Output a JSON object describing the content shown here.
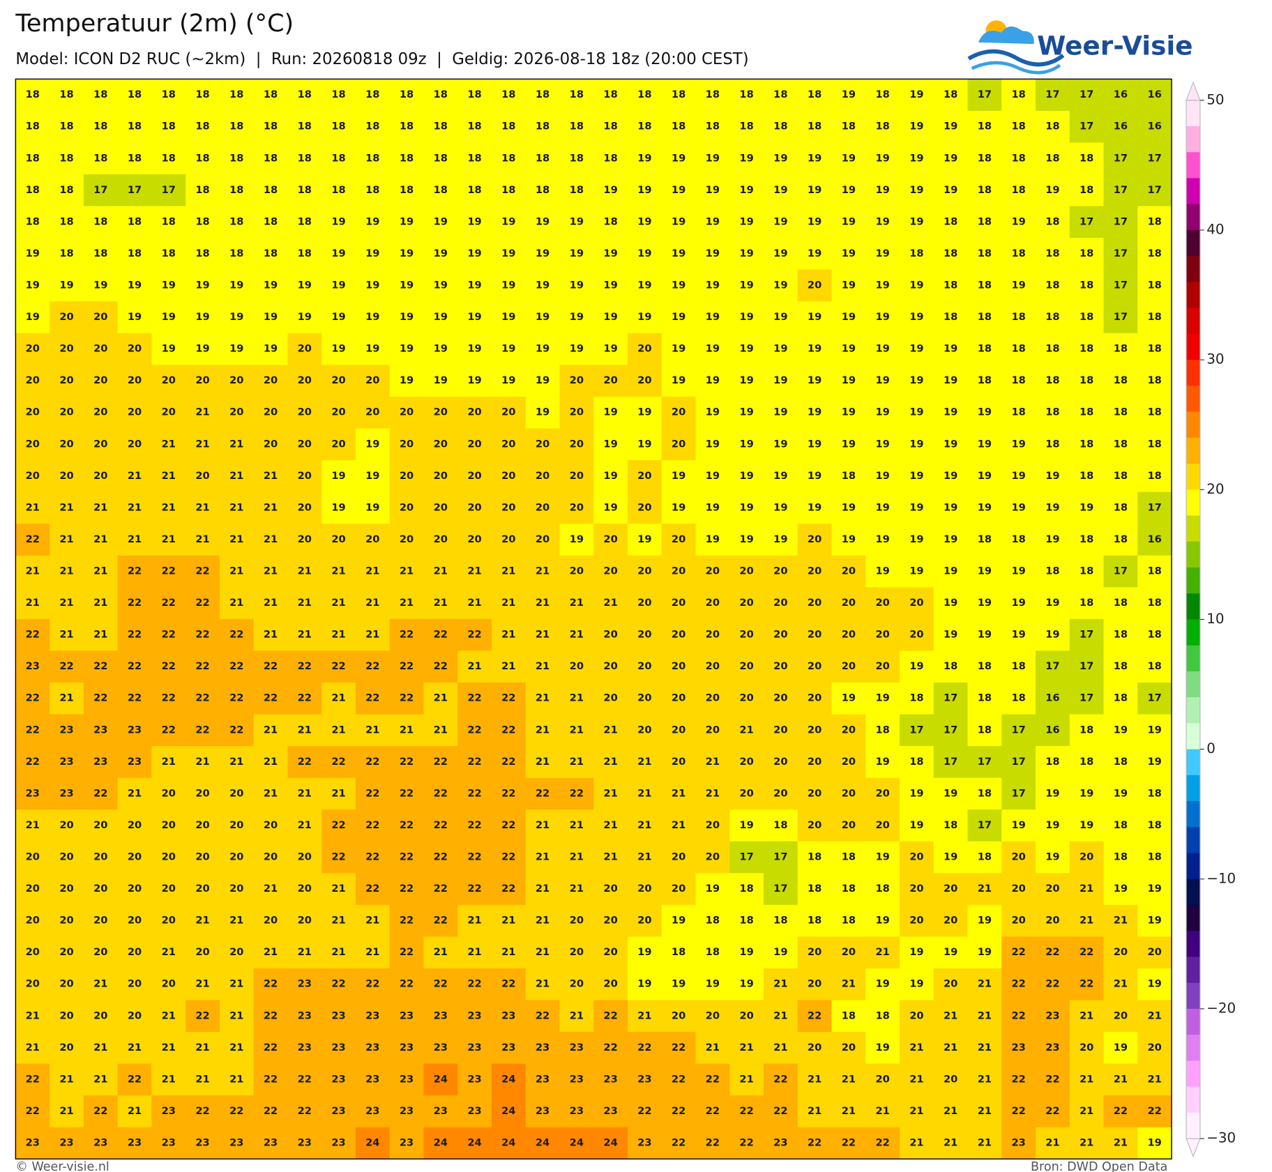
{
  "header": {
    "title": "Temperatuur (2m) (°C)",
    "subtitle": "Model: ICON D2 RUC (~2km)  |  Run: 20260818 09z  |  Geldig: 2026-08-18 18z (20:00 CEST)",
    "logo": "Weer-Visie"
  },
  "map": {
    "grid": [
      [
        18,
        18,
        18,
        18,
        18,
        18,
        18,
        18,
        18,
        18,
        18,
        18,
        18,
        18,
        18,
        18,
        18,
        18,
        18,
        18,
        18,
        18,
        18,
        18,
        19,
        18,
        19,
        18,
        17,
        18,
        17,
        17,
        16,
        16
      ],
      [
        18,
        18,
        18,
        18,
        18,
        18,
        18,
        18,
        18,
        18,
        18,
        18,
        18,
        18,
        18,
        18,
        18,
        18,
        18,
        18,
        18,
        18,
        18,
        18,
        18,
        18,
        19,
        19,
        18,
        18,
        18,
        17,
        16,
        16
      ],
      [
        18,
        18,
        18,
        18,
        18,
        18,
        18,
        18,
        18,
        18,
        18,
        18,
        18,
        18,
        18,
        18,
        18,
        18,
        19,
        19,
        19,
        19,
        19,
        19,
        19,
        19,
        19,
        19,
        18,
        18,
        18,
        18,
        17,
        17
      ],
      [
        18,
        18,
        17,
        17,
        17,
        18,
        18,
        18,
        18,
        18,
        18,
        18,
        18,
        18,
        18,
        18,
        18,
        19,
        19,
        19,
        19,
        19,
        19,
        19,
        19,
        19,
        19,
        19,
        18,
        18,
        19,
        18,
        17,
        17
      ],
      [
        18,
        18,
        18,
        18,
        18,
        18,
        18,
        18,
        18,
        19,
        19,
        19,
        19,
        19,
        19,
        19,
        19,
        18,
        19,
        19,
        19,
        19,
        19,
        19,
        19,
        19,
        19,
        18,
        18,
        19,
        18,
        17,
        17,
        18
      ],
      [
        19,
        18,
        18,
        18,
        18,
        18,
        18,
        18,
        18,
        19,
        19,
        19,
        19,
        19,
        19,
        19,
        19,
        19,
        19,
        19,
        19,
        19,
        19,
        19,
        19,
        19,
        18,
        18,
        18,
        18,
        18,
        18,
        17,
        18
      ],
      [
        19,
        19,
        19,
        19,
        19,
        19,
        19,
        19,
        19,
        19,
        19,
        19,
        19,
        19,
        19,
        19,
        19,
        19,
        19,
        19,
        19,
        19,
        19,
        20,
        19,
        19,
        19,
        18,
        18,
        19,
        18,
        18,
        17,
        18
      ],
      [
        19,
        20,
        20,
        19,
        19,
        19,
        19,
        19,
        19,
        19,
        19,
        19,
        19,
        19,
        19,
        19,
        19,
        19,
        19,
        19,
        19,
        19,
        19,
        19,
        19,
        19,
        19,
        18,
        18,
        18,
        18,
        18,
        17,
        18
      ],
      [
        20,
        20,
        20,
        20,
        19,
        19,
        19,
        19,
        20,
        19,
        19,
        19,
        19,
        19,
        19,
        19,
        19,
        19,
        20,
        19,
        19,
        19,
        19,
        19,
        19,
        19,
        19,
        19,
        18,
        18,
        18,
        18,
        18,
        18
      ],
      [
        20,
        20,
        20,
        20,
        20,
        20,
        20,
        20,
        20,
        20,
        20,
        19,
        19,
        19,
        19,
        19,
        20,
        20,
        20,
        19,
        19,
        19,
        19,
        19,
        19,
        19,
        19,
        19,
        18,
        18,
        18,
        18,
        18,
        18
      ],
      [
        20,
        20,
        20,
        20,
        20,
        21,
        20,
        20,
        20,
        20,
        20,
        20,
        20,
        20,
        20,
        19,
        20,
        19,
        19,
        20,
        19,
        19,
        19,
        19,
        19,
        19,
        19,
        19,
        19,
        18,
        18,
        18,
        18,
        18
      ],
      [
        20,
        20,
        20,
        20,
        21,
        21,
        21,
        20,
        20,
        20,
        19,
        20,
        20,
        20,
        20,
        20,
        20,
        19,
        19,
        20,
        19,
        19,
        19,
        19,
        19,
        19,
        19,
        19,
        19,
        19,
        18,
        18,
        18,
        18
      ],
      [
        20,
        20,
        20,
        21,
        21,
        20,
        21,
        21,
        20,
        19,
        19,
        20,
        20,
        20,
        20,
        20,
        20,
        19,
        20,
        19,
        19,
        19,
        19,
        19,
        18,
        19,
        19,
        19,
        19,
        19,
        19,
        18,
        18,
        18
      ],
      [
        21,
        21,
        21,
        21,
        21,
        21,
        21,
        21,
        20,
        19,
        19,
        20,
        20,
        20,
        20,
        20,
        20,
        19,
        20,
        19,
        19,
        19,
        19,
        19,
        19,
        19,
        19,
        19,
        19,
        19,
        19,
        19,
        18,
        17
      ],
      [
        22,
        21,
        21,
        21,
        21,
        21,
        21,
        21,
        20,
        20,
        20,
        20,
        20,
        20,
        20,
        20,
        19,
        20,
        19,
        20,
        19,
        19,
        19,
        20,
        19,
        19,
        19,
        19,
        18,
        18,
        19,
        18,
        18,
        16
      ],
      [
        21,
        21,
        21,
        22,
        22,
        22,
        21,
        21,
        21,
        21,
        21,
        21,
        21,
        21,
        21,
        21,
        20,
        20,
        20,
        20,
        20,
        20,
        20,
        20,
        20,
        19,
        19,
        19,
        19,
        19,
        18,
        18,
        17,
        18
      ],
      [
        21,
        21,
        21,
        22,
        22,
        22,
        21,
        21,
        21,
        21,
        21,
        21,
        21,
        21,
        21,
        21,
        21,
        21,
        20,
        20,
        20,
        20,
        20,
        20,
        20,
        20,
        20,
        19,
        19,
        19,
        19,
        18,
        18,
        18
      ],
      [
        22,
        21,
        21,
        22,
        22,
        22,
        22,
        21,
        21,
        21,
        21,
        22,
        22,
        22,
        21,
        21,
        21,
        20,
        20,
        20,
        20,
        20,
        20,
        20,
        20,
        20,
        20,
        19,
        19,
        19,
        19,
        17,
        18,
        18
      ],
      [
        23,
        22,
        22,
        22,
        22,
        22,
        22,
        22,
        22,
        22,
        22,
        22,
        22,
        21,
        21,
        21,
        20,
        20,
        20,
        20,
        20,
        20,
        20,
        20,
        20,
        20,
        19,
        18,
        18,
        18,
        17,
        17,
        18,
        18
      ],
      [
        22,
        21,
        22,
        22,
        22,
        22,
        22,
        22,
        22,
        21,
        22,
        22,
        21,
        22,
        22,
        21,
        21,
        20,
        20,
        20,
        20,
        20,
        20,
        20,
        19,
        19,
        18,
        17,
        18,
        18,
        16,
        17,
        18,
        17
      ],
      [
        22,
        23,
        23,
        23,
        22,
        22,
        22,
        21,
        21,
        21,
        21,
        21,
        21,
        22,
        22,
        21,
        21,
        21,
        20,
        20,
        20,
        21,
        20,
        20,
        20,
        18,
        17,
        17,
        18,
        17,
        16,
        18,
        19,
        19
      ],
      [
        22,
        23,
        23,
        23,
        21,
        21,
        21,
        21,
        22,
        22,
        22,
        22,
        22,
        22,
        22,
        21,
        21,
        21,
        21,
        20,
        21,
        20,
        20,
        20,
        20,
        19,
        18,
        17,
        17,
        17,
        18,
        18,
        18,
        19
      ],
      [
        23,
        23,
        22,
        21,
        20,
        20,
        20,
        21,
        21,
        21,
        22,
        22,
        22,
        22,
        22,
        22,
        22,
        21,
        21,
        21,
        21,
        20,
        20,
        20,
        20,
        20,
        19,
        19,
        18,
        17,
        19,
        19,
        19,
        18
      ],
      [
        21,
        20,
        20,
        20,
        20,
        20,
        20,
        20,
        21,
        22,
        22,
        22,
        22,
        22,
        22,
        21,
        21,
        21,
        21,
        21,
        20,
        19,
        18,
        20,
        20,
        20,
        19,
        18,
        17,
        19,
        19,
        19,
        18,
        18
      ],
      [
        20,
        20,
        20,
        20,
        20,
        20,
        20,
        20,
        20,
        22,
        22,
        22,
        22,
        22,
        22,
        21,
        21,
        21,
        21,
        20,
        20,
        17,
        17,
        18,
        18,
        19,
        20,
        19,
        18,
        20,
        19,
        20,
        18,
        18
      ],
      [
        20,
        20,
        20,
        20,
        20,
        20,
        20,
        21,
        20,
        21,
        22,
        22,
        22,
        22,
        22,
        21,
        21,
        20,
        20,
        20,
        19,
        18,
        17,
        18,
        18,
        18,
        20,
        20,
        21,
        20,
        20,
        21,
        19,
        19
      ],
      [
        20,
        20,
        20,
        20,
        20,
        21,
        21,
        20,
        20,
        21,
        21,
        22,
        22,
        21,
        21,
        21,
        20,
        20,
        20,
        19,
        18,
        18,
        18,
        18,
        18,
        19,
        20,
        20,
        19,
        20,
        20,
        21,
        21,
        19
      ],
      [
        20,
        20,
        20,
        20,
        21,
        20,
        20,
        21,
        21,
        21,
        21,
        22,
        21,
        21,
        21,
        21,
        20,
        20,
        19,
        18,
        18,
        19,
        19,
        20,
        20,
        21,
        19,
        19,
        19,
        22,
        22,
        22,
        20,
        20
      ],
      [
        20,
        20,
        21,
        20,
        20,
        21,
        21,
        22,
        23,
        22,
        22,
        22,
        22,
        22,
        22,
        21,
        20,
        20,
        19,
        19,
        19,
        19,
        21,
        20,
        21,
        19,
        19,
        20,
        21,
        22,
        22,
        22,
        21,
        19
      ],
      [
        21,
        20,
        20,
        20,
        21,
        22,
        21,
        22,
        23,
        23,
        23,
        23,
        23,
        23,
        23,
        22,
        21,
        22,
        21,
        20,
        20,
        20,
        21,
        22,
        18,
        18,
        20,
        21,
        21,
        22,
        23,
        21,
        20,
        21
      ],
      [
        21,
        20,
        21,
        21,
        21,
        21,
        21,
        22,
        23,
        23,
        23,
        23,
        23,
        23,
        23,
        23,
        23,
        22,
        22,
        22,
        21,
        21,
        21,
        20,
        20,
        19,
        21,
        21,
        21,
        23,
        23,
        20,
        19,
        20
      ],
      [
        22,
        21,
        21,
        22,
        21,
        21,
        21,
        22,
        22,
        23,
        23,
        23,
        24,
        23,
        24,
        23,
        23,
        23,
        23,
        22,
        22,
        21,
        22,
        21,
        21,
        20,
        21,
        20,
        21,
        22,
        22,
        21,
        21,
        21
      ],
      [
        22,
        21,
        22,
        21,
        23,
        22,
        22,
        22,
        22,
        23,
        23,
        23,
        23,
        23,
        24,
        23,
        23,
        23,
        22,
        22,
        22,
        22,
        22,
        21,
        21,
        21,
        21,
        21,
        21,
        22,
        22,
        21,
        22,
        22
      ],
      [
        23,
        23,
        23,
        23,
        23,
        23,
        23,
        23,
        23,
        23,
        24,
        23,
        24,
        24,
        24,
        24,
        24,
        24,
        23,
        22,
        22,
        22,
        23,
        22,
        22,
        22,
        21,
        21,
        21,
        23,
        21,
        21,
        21,
        19
      ]
    ],
    "colorbar": {
      "lim": [
        -30,
        50
      ],
      "ticks": [
        50,
        40,
        30,
        20,
        10,
        0,
        {
          "value": -10,
          "label": "−10"
        },
        {
          "value": -20,
          "label": "−20"
        },
        {
          "value": -30,
          "label": "−30"
        }
      ],
      "colors": [
        "#ffe6f6",
        "#ffb0e0",
        "#ff50d0",
        "#d000b0",
        "#900070",
        "#500030",
        "#800010",
        "#b00000",
        "#d80000",
        "#f00000",
        "#ff3000",
        "#ff5a00",
        "#ff8800",
        "#ffb000",
        "#ffd800",
        "#ffff00",
        "#c8dc00",
        "#88c800",
        "#44b000",
        "#008800",
        "#00b000",
        "#40c840",
        "#80dc80",
        "#b0f0b0",
        "#d8ffd8",
        "#40c8ff",
        "#00a0e8",
        "#0070d0",
        "#0040b0",
        "#002090",
        "#001050",
        "#200040",
        "#400080",
        "#6020a0",
        "#8040c0",
        "#c060e0",
        "#e080f0",
        "#ffa0ff",
        "#ffd0ff",
        "#fff0ff"
      ]
    }
  },
  "footer": {
    "left": "© Weer-visie.nl",
    "right": "Bron: DWD Open Data"
  }
}
